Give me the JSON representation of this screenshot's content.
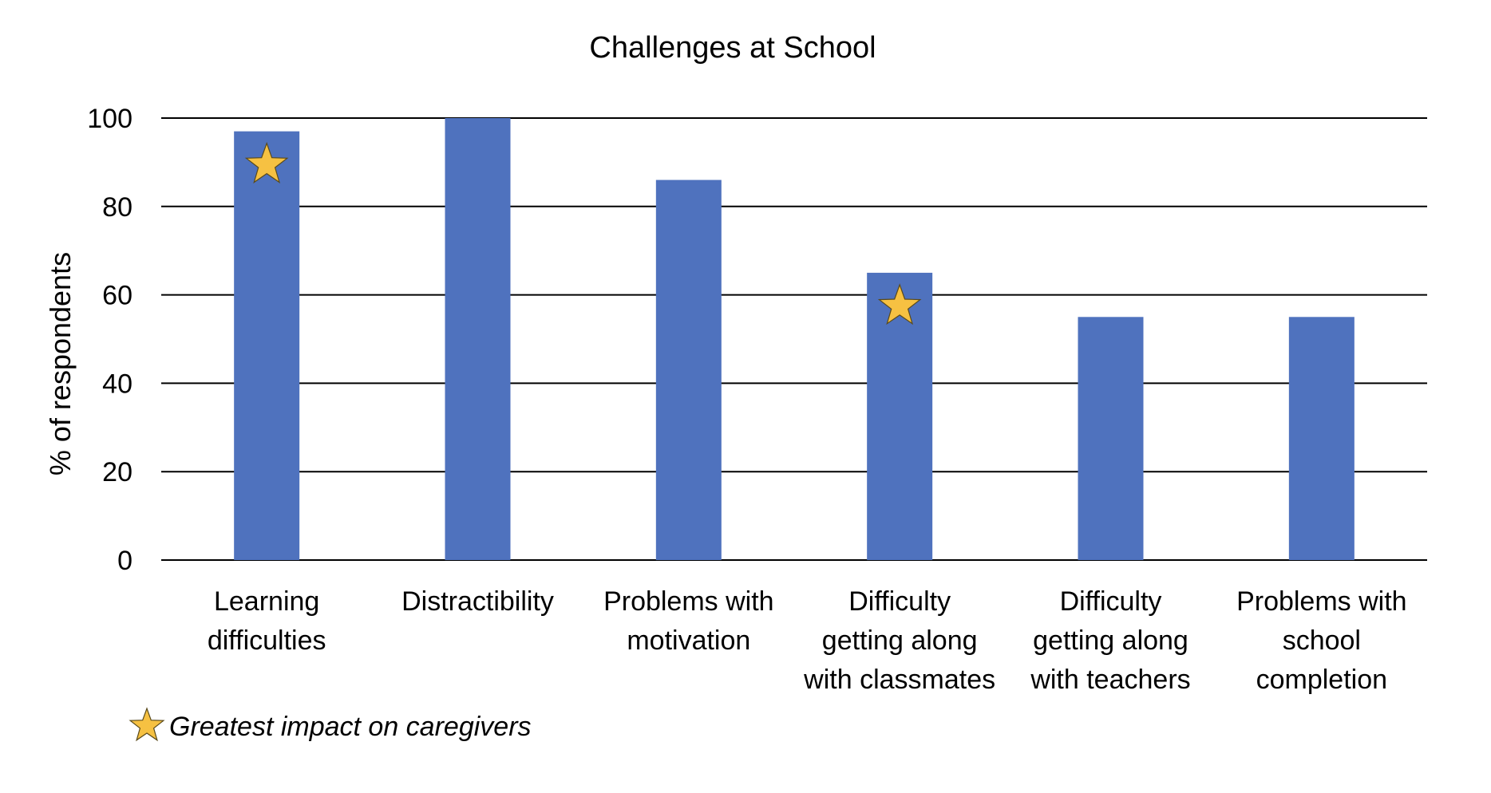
{
  "chart_data": {
    "type": "bar",
    "title": "Challenges at School",
    "xlabel": "",
    "ylabel": "% of respondents",
    "ylim": [
      0,
      100
    ],
    "yticks": [
      0,
      20,
      40,
      60,
      80,
      100
    ],
    "grid": true,
    "categories": [
      [
        "Learning",
        "difficulties"
      ],
      [
        "Distractibility"
      ],
      [
        "Problems with",
        "motivation"
      ],
      [
        "Difficulty",
        "getting along",
        "with classmates"
      ],
      [
        "Difficulty",
        "getting along",
        "with teachers"
      ],
      [
        "Problems with",
        "school",
        "completion"
      ]
    ],
    "values": [
      97,
      100,
      86,
      65,
      55,
      55
    ],
    "starred": [
      true,
      false,
      false,
      true,
      false,
      false
    ],
    "bar_color": "#4F72BE",
    "star_color": "#F6C142",
    "legend": {
      "placement": "bottom-left",
      "marker": "star-icon",
      "text": "Greatest impact on caregivers"
    }
  }
}
